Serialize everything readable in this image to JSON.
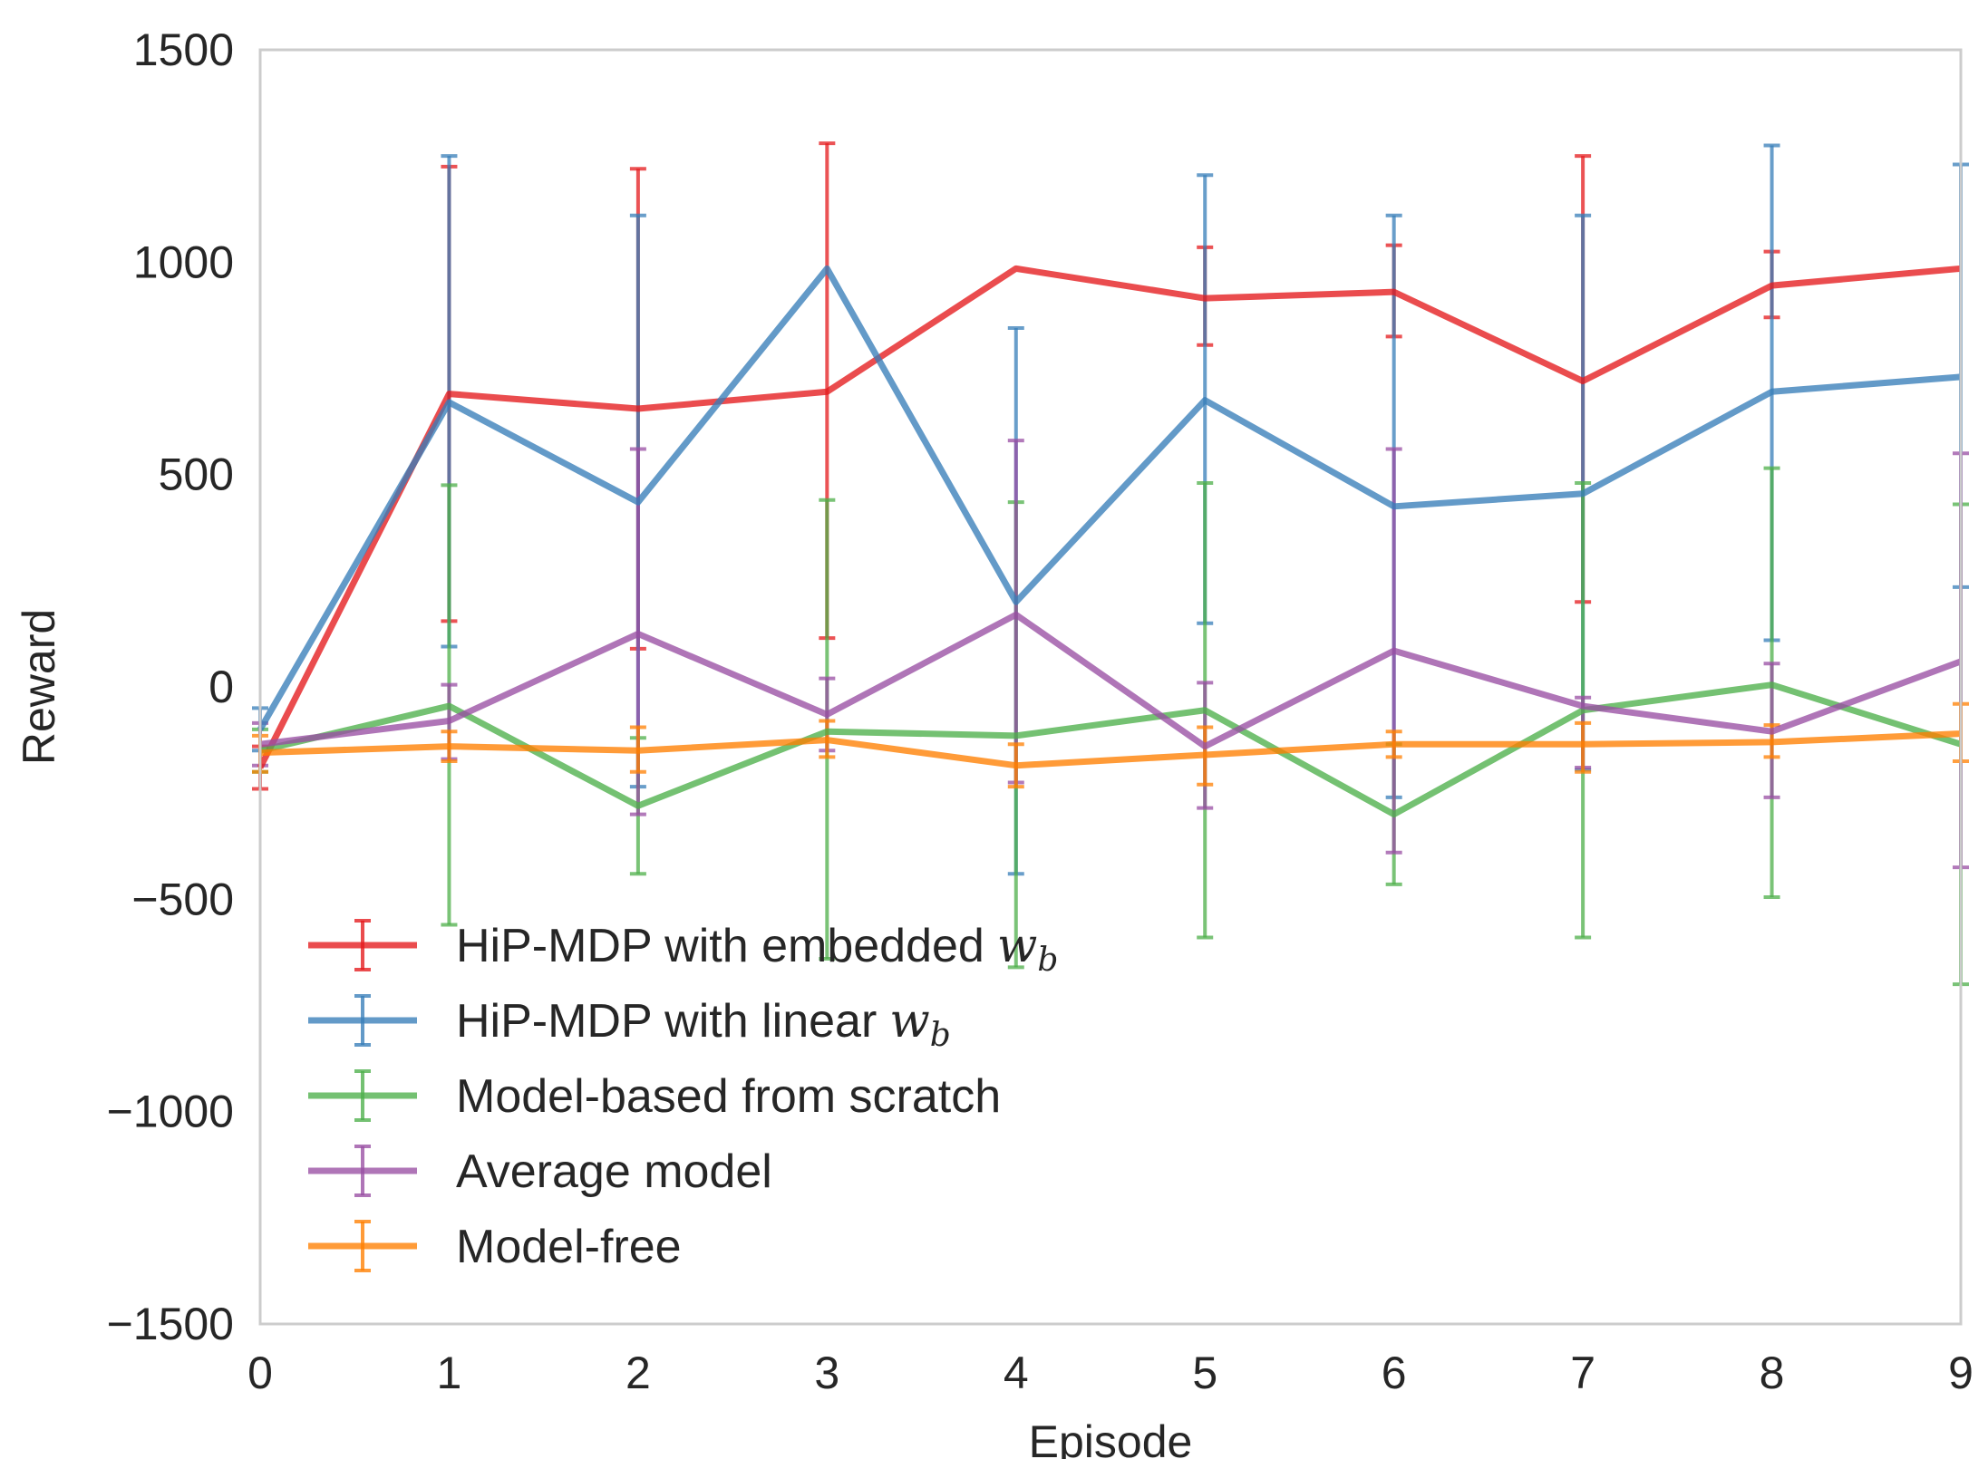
{
  "chart_data": {
    "type": "line",
    "title": "",
    "xlabel": "Episode",
    "ylabel": "Reward",
    "xlim": [
      0,
      9
    ],
    "ylim": [
      -1500,
      1500
    ],
    "xticks": [
      0,
      1,
      2,
      3,
      4,
      5,
      6,
      7,
      8,
      9
    ],
    "yticks": [
      -1500,
      -1000,
      -500,
      0,
      500,
      1000,
      1500
    ],
    "ytick_labels": [
      "−1500",
      "−1000",
      "−500",
      "0",
      "500",
      "1000",
      "1500"
    ],
    "grid": false,
    "legend_position": "lower-left",
    "x": [
      0,
      1,
      2,
      3,
      4,
      5,
      6,
      7,
      8,
      9
    ],
    "series": [
      {
        "name": "HiP-MDP with embedded",
        "math_symbol": "w",
        "math_subscript": "b",
        "color": "#e41a1c",
        "values": [
          -190,
          690,
          655,
          695,
          985,
          915,
          930,
          720,
          945,
          985
        ],
        "lower": [
          -240,
          155,
          90,
          115,
          null,
          805,
          825,
          200,
          870,
          null
        ],
        "upper": [
          -140,
          1225,
          1220,
          1280,
          null,
          1035,
          1040,
          1250,
          1025,
          null
        ]
      },
      {
        "name": "HiP-MDP with linear",
        "math_symbol": "w",
        "math_subscript": "b",
        "color": "#377eb8",
        "values": [
          -100,
          670,
          435,
          985,
          200,
          675,
          425,
          455,
          695,
          730
        ],
        "lower": [
          -150,
          95,
          -235,
          null,
          -440,
          150,
          -260,
          -195,
          110,
          235
        ],
        "upper": [
          -50,
          1250,
          1110,
          null,
          845,
          1205,
          1110,
          1110,
          1275,
          1230
        ]
      },
      {
        "name": "Model-based from scratch",
        "math_symbol": "",
        "math_subscript": "",
        "color": "#4daf4a",
        "values": [
          -150,
          -45,
          -280,
          -105,
          -115,
          -55,
          -300,
          -55,
          5,
          -135
        ],
        "lower": [
          -200,
          -560,
          -440,
          -640,
          -660,
          -590,
          -465,
          -590,
          -495,
          -700
        ],
        "upper": [
          -100,
          475,
          -120,
          440,
          435,
          480,
          -135,
          480,
          515,
          430
        ]
      },
      {
        "name": "Average model",
        "math_symbol": "",
        "math_subscript": "",
        "color": "#984ea3",
        "values": [
          -135,
          -80,
          125,
          -65,
          170,
          -140,
          85,
          -45,
          -105,
          60
        ],
        "lower": [
          -185,
          -170,
          -300,
          -150,
          -225,
          -285,
          -390,
          -190,
          -260,
          -425
        ],
        "upper": [
          -85,
          5,
          560,
          20,
          580,
          10,
          560,
          -25,
          55,
          550
        ]
      },
      {
        "name": "Model-free",
        "math_symbol": "",
        "math_subscript": "",
        "color": "#ff7f00",
        "values": [
          -155,
          -140,
          -150,
          -125,
          -185,
          -160,
          -135,
          -135,
          -130,
          -110
        ],
        "lower": [
          -200,
          -175,
          -200,
          -165,
          -235,
          -230,
          -165,
          -200,
          -165,
          -175
        ],
        "upper": [
          -115,
          -105,
          -95,
          -80,
          -135,
          -95,
          -105,
          -85,
          -90,
          -40
        ]
      }
    ]
  }
}
